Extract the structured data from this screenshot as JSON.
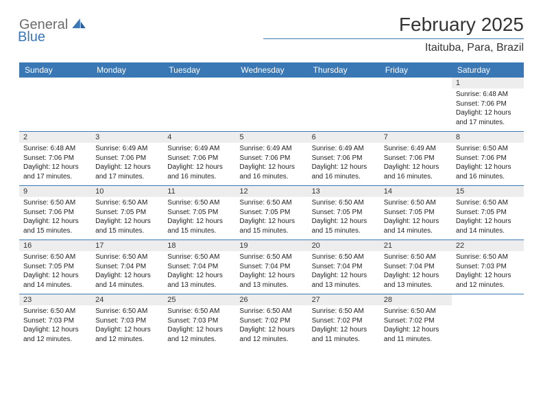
{
  "logo": {
    "word1": "General",
    "word2": "Blue",
    "brand_color": "#3a77b5",
    "gray": "#6b6b6b"
  },
  "header": {
    "title": "February 2025",
    "location": "Itaituba, Para, Brazil"
  },
  "colors": {
    "header_bg": "#3a77b5",
    "day_bg": "#ededed",
    "rule": "#3a77b5"
  },
  "weekdays": [
    "Sunday",
    "Monday",
    "Tuesday",
    "Wednesday",
    "Thursday",
    "Friday",
    "Saturday"
  ],
  "weeks": [
    [
      null,
      null,
      null,
      null,
      null,
      null,
      {
        "n": "1",
        "sr": "Sunrise: 6:48 AM",
        "ss": "Sunset: 7:06 PM",
        "d1": "Daylight: 12 hours",
        "d2": "and 17 minutes."
      }
    ],
    [
      {
        "n": "2",
        "sr": "Sunrise: 6:48 AM",
        "ss": "Sunset: 7:06 PM",
        "d1": "Daylight: 12 hours",
        "d2": "and 17 minutes."
      },
      {
        "n": "3",
        "sr": "Sunrise: 6:49 AM",
        "ss": "Sunset: 7:06 PM",
        "d1": "Daylight: 12 hours",
        "d2": "and 17 minutes."
      },
      {
        "n": "4",
        "sr": "Sunrise: 6:49 AM",
        "ss": "Sunset: 7:06 PM",
        "d1": "Daylight: 12 hours",
        "d2": "and 16 minutes."
      },
      {
        "n": "5",
        "sr": "Sunrise: 6:49 AM",
        "ss": "Sunset: 7:06 PM",
        "d1": "Daylight: 12 hours",
        "d2": "and 16 minutes."
      },
      {
        "n": "6",
        "sr": "Sunrise: 6:49 AM",
        "ss": "Sunset: 7:06 PM",
        "d1": "Daylight: 12 hours",
        "d2": "and 16 minutes."
      },
      {
        "n": "7",
        "sr": "Sunrise: 6:49 AM",
        "ss": "Sunset: 7:06 PM",
        "d1": "Daylight: 12 hours",
        "d2": "and 16 minutes."
      },
      {
        "n": "8",
        "sr": "Sunrise: 6:50 AM",
        "ss": "Sunset: 7:06 PM",
        "d1": "Daylight: 12 hours",
        "d2": "and 16 minutes."
      }
    ],
    [
      {
        "n": "9",
        "sr": "Sunrise: 6:50 AM",
        "ss": "Sunset: 7:06 PM",
        "d1": "Daylight: 12 hours",
        "d2": "and 15 minutes."
      },
      {
        "n": "10",
        "sr": "Sunrise: 6:50 AM",
        "ss": "Sunset: 7:05 PM",
        "d1": "Daylight: 12 hours",
        "d2": "and 15 minutes."
      },
      {
        "n": "11",
        "sr": "Sunrise: 6:50 AM",
        "ss": "Sunset: 7:05 PM",
        "d1": "Daylight: 12 hours",
        "d2": "and 15 minutes."
      },
      {
        "n": "12",
        "sr": "Sunrise: 6:50 AM",
        "ss": "Sunset: 7:05 PM",
        "d1": "Daylight: 12 hours",
        "d2": "and 15 minutes."
      },
      {
        "n": "13",
        "sr": "Sunrise: 6:50 AM",
        "ss": "Sunset: 7:05 PM",
        "d1": "Daylight: 12 hours",
        "d2": "and 15 minutes."
      },
      {
        "n": "14",
        "sr": "Sunrise: 6:50 AM",
        "ss": "Sunset: 7:05 PM",
        "d1": "Daylight: 12 hours",
        "d2": "and 14 minutes."
      },
      {
        "n": "15",
        "sr": "Sunrise: 6:50 AM",
        "ss": "Sunset: 7:05 PM",
        "d1": "Daylight: 12 hours",
        "d2": "and 14 minutes."
      }
    ],
    [
      {
        "n": "16",
        "sr": "Sunrise: 6:50 AM",
        "ss": "Sunset: 7:05 PM",
        "d1": "Daylight: 12 hours",
        "d2": "and 14 minutes."
      },
      {
        "n": "17",
        "sr": "Sunrise: 6:50 AM",
        "ss": "Sunset: 7:04 PM",
        "d1": "Daylight: 12 hours",
        "d2": "and 14 minutes."
      },
      {
        "n": "18",
        "sr": "Sunrise: 6:50 AM",
        "ss": "Sunset: 7:04 PM",
        "d1": "Daylight: 12 hours",
        "d2": "and 13 minutes."
      },
      {
        "n": "19",
        "sr": "Sunrise: 6:50 AM",
        "ss": "Sunset: 7:04 PM",
        "d1": "Daylight: 12 hours",
        "d2": "and 13 minutes."
      },
      {
        "n": "20",
        "sr": "Sunrise: 6:50 AM",
        "ss": "Sunset: 7:04 PM",
        "d1": "Daylight: 12 hours",
        "d2": "and 13 minutes."
      },
      {
        "n": "21",
        "sr": "Sunrise: 6:50 AM",
        "ss": "Sunset: 7:04 PM",
        "d1": "Daylight: 12 hours",
        "d2": "and 13 minutes."
      },
      {
        "n": "22",
        "sr": "Sunrise: 6:50 AM",
        "ss": "Sunset: 7:03 PM",
        "d1": "Daylight: 12 hours",
        "d2": "and 12 minutes."
      }
    ],
    [
      {
        "n": "23",
        "sr": "Sunrise: 6:50 AM",
        "ss": "Sunset: 7:03 PM",
        "d1": "Daylight: 12 hours",
        "d2": "and 12 minutes."
      },
      {
        "n": "24",
        "sr": "Sunrise: 6:50 AM",
        "ss": "Sunset: 7:03 PM",
        "d1": "Daylight: 12 hours",
        "d2": "and 12 minutes."
      },
      {
        "n": "25",
        "sr": "Sunrise: 6:50 AM",
        "ss": "Sunset: 7:03 PM",
        "d1": "Daylight: 12 hours",
        "d2": "and 12 minutes."
      },
      {
        "n": "26",
        "sr": "Sunrise: 6:50 AM",
        "ss": "Sunset: 7:02 PM",
        "d1": "Daylight: 12 hours",
        "d2": "and 12 minutes."
      },
      {
        "n": "27",
        "sr": "Sunrise: 6:50 AM",
        "ss": "Sunset: 7:02 PM",
        "d1": "Daylight: 12 hours",
        "d2": "and 11 minutes."
      },
      {
        "n": "28",
        "sr": "Sunrise: 6:50 AM",
        "ss": "Sunset: 7:02 PM",
        "d1": "Daylight: 12 hours",
        "d2": "and 11 minutes."
      },
      null
    ]
  ]
}
